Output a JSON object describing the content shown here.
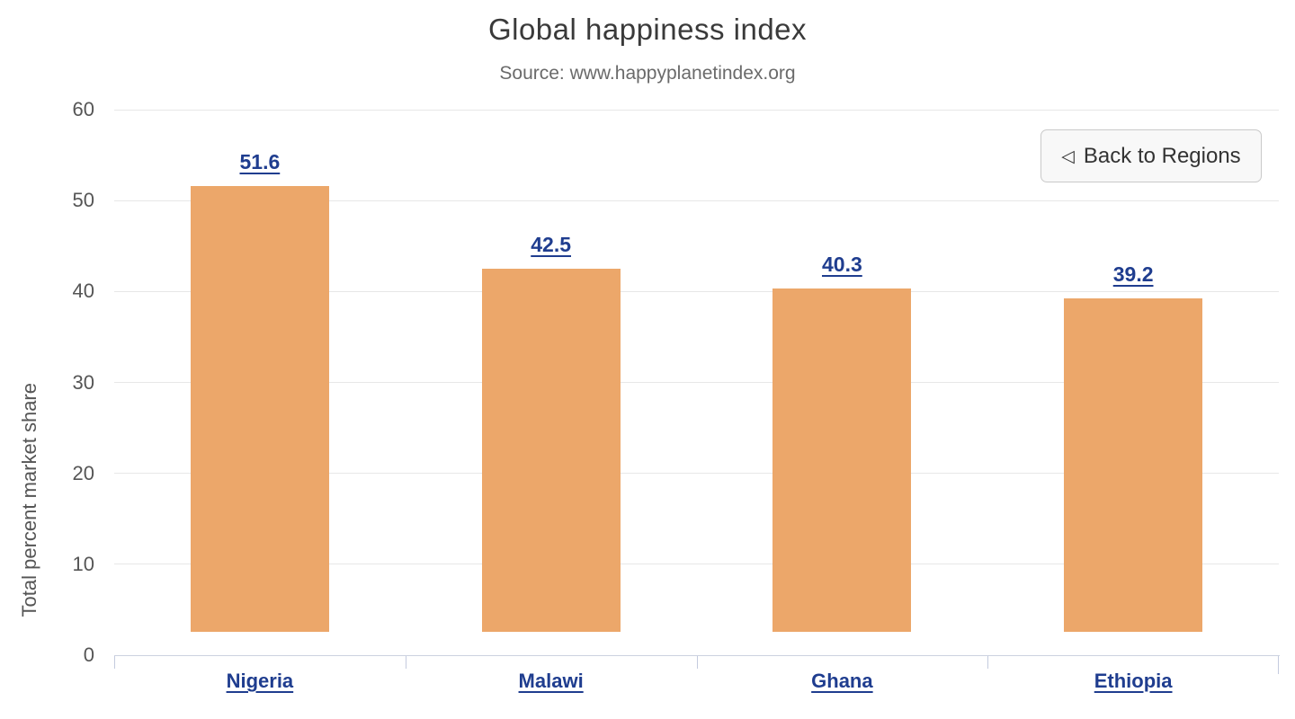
{
  "chart_data": {
    "type": "bar",
    "title": "Global happiness index",
    "subtitle": "Source: www.happyplanetindex.org",
    "categories": [
      "Nigeria",
      "Malawi",
      "Ghana",
      "Ethiopia"
    ],
    "values": [
      51.6,
      42.5,
      40.3,
      39.2
    ],
    "xlabel": "",
    "ylabel": "Total percent market share",
    "ylim": [
      0,
      60
    ],
    "yticks": [
      0,
      10,
      20,
      30,
      40,
      50,
      60
    ],
    "grid": true,
    "legend": false,
    "bar_color": "#eca76a",
    "label_color": "#1f3d8f",
    "axis_text_color": "#555555",
    "gridline_color": "#e7e7e7"
  },
  "toolbar": {
    "back_button_label": "Back to Regions",
    "back_button_icon": "◁"
  }
}
